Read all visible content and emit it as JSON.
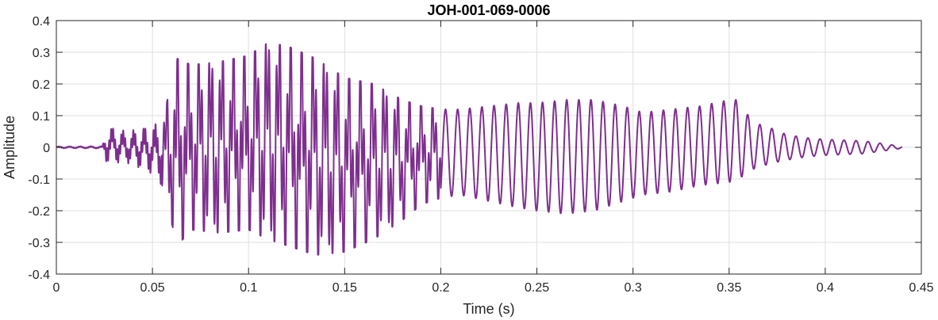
{
  "chart_data": {
    "type": "line",
    "title": "JOH-001-069-0006",
    "xlabel": "Time (s)",
    "ylabel": "Amplitude",
    "xlim": [
      0,
      0.45
    ],
    "ylim": [
      -0.4,
      0.4
    ],
    "grid": true,
    "x_ticks": [
      0,
      0.05,
      0.1,
      0.15,
      0.2,
      0.25,
      0.3,
      0.35,
      0.4,
      0.45
    ],
    "x_tick_labels": [
      "0",
      "0.05",
      "0.1",
      "0.15",
      "0.2",
      "0.25",
      "0.3",
      "0.35",
      "0.4",
      "0.45"
    ],
    "y_ticks": [
      -0.4,
      -0.3,
      -0.2,
      -0.1,
      0,
      0.1,
      0.2,
      0.3,
      0.4
    ],
    "y_tick_labels": [
      "-0.4",
      "-0.3",
      "-0.2",
      "-0.1",
      "0",
      "0.1",
      "0.2",
      "0.3",
      "0.4"
    ],
    "line_color": "#7E2F8E",
    "series": [
      {
        "x_end": 0.44,
        "envelope": {
          "t": [
            0,
            0.024,
            0.026,
            0.037,
            0.048,
            0.055,
            0.063,
            0.07,
            0.085,
            0.1,
            0.11,
            0.12,
            0.135,
            0.15,
            0.165,
            0.18,
            0.19,
            0.2,
            0.21,
            0.225,
            0.24,
            0.25,
            0.265,
            0.28,
            0.295,
            0.305,
            0.32,
            0.335,
            0.35,
            0.355,
            0.362,
            0.372,
            0.38,
            0.39,
            0.4,
            0.42,
            0.44
          ],
          "upper": [
            0.003,
            0.004,
            0.07,
            0.05,
            0.07,
            0.08,
            0.28,
            0.26,
            0.27,
            0.29,
            0.33,
            0.32,
            0.28,
            0.22,
            0.2,
            0.15,
            0.13,
            0.12,
            0.12,
            0.13,
            0.14,
            0.14,
            0.15,
            0.15,
            0.13,
            0.11,
            0.12,
            0.13,
            0.15,
            0.15,
            0.08,
            0.06,
            0.04,
            0.03,
            0.025,
            0.02,
            0.003
          ],
          "lower": [
            -0.003,
            -0.004,
            -0.05,
            -0.05,
            -0.08,
            -0.12,
            -0.31,
            -0.26,
            -0.27,
            -0.26,
            -0.29,
            -0.31,
            -0.34,
            -0.33,
            -0.29,
            -0.23,
            -0.18,
            -0.16,
            -0.15,
            -0.17,
            -0.19,
            -0.2,
            -0.21,
            -0.2,
            -0.17,
            -0.15,
            -0.14,
            -0.12,
            -0.11,
            -0.1,
            -0.07,
            -0.05,
            -0.04,
            -0.03,
            -0.025,
            -0.02,
            -0.003
          ]
        }
      }
    ]
  }
}
